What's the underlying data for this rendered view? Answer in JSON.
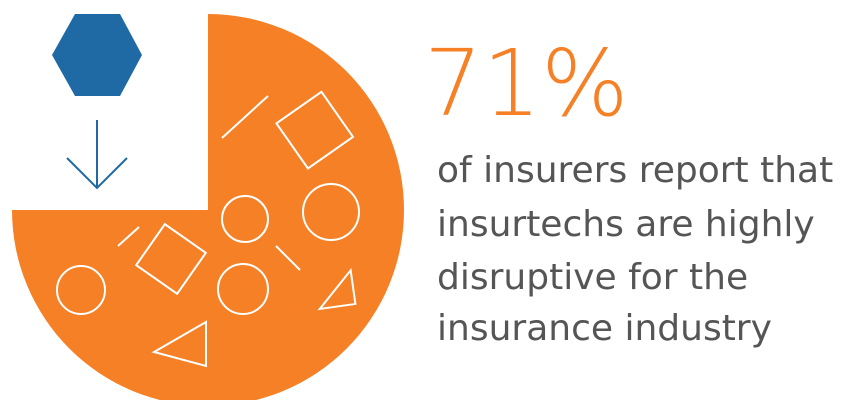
{
  "stat": "71%",
  "description": [
    "of insurers report that",
    "insurtechs are highly",
    "disruptive for the",
    "insurance industry"
  ]
}
